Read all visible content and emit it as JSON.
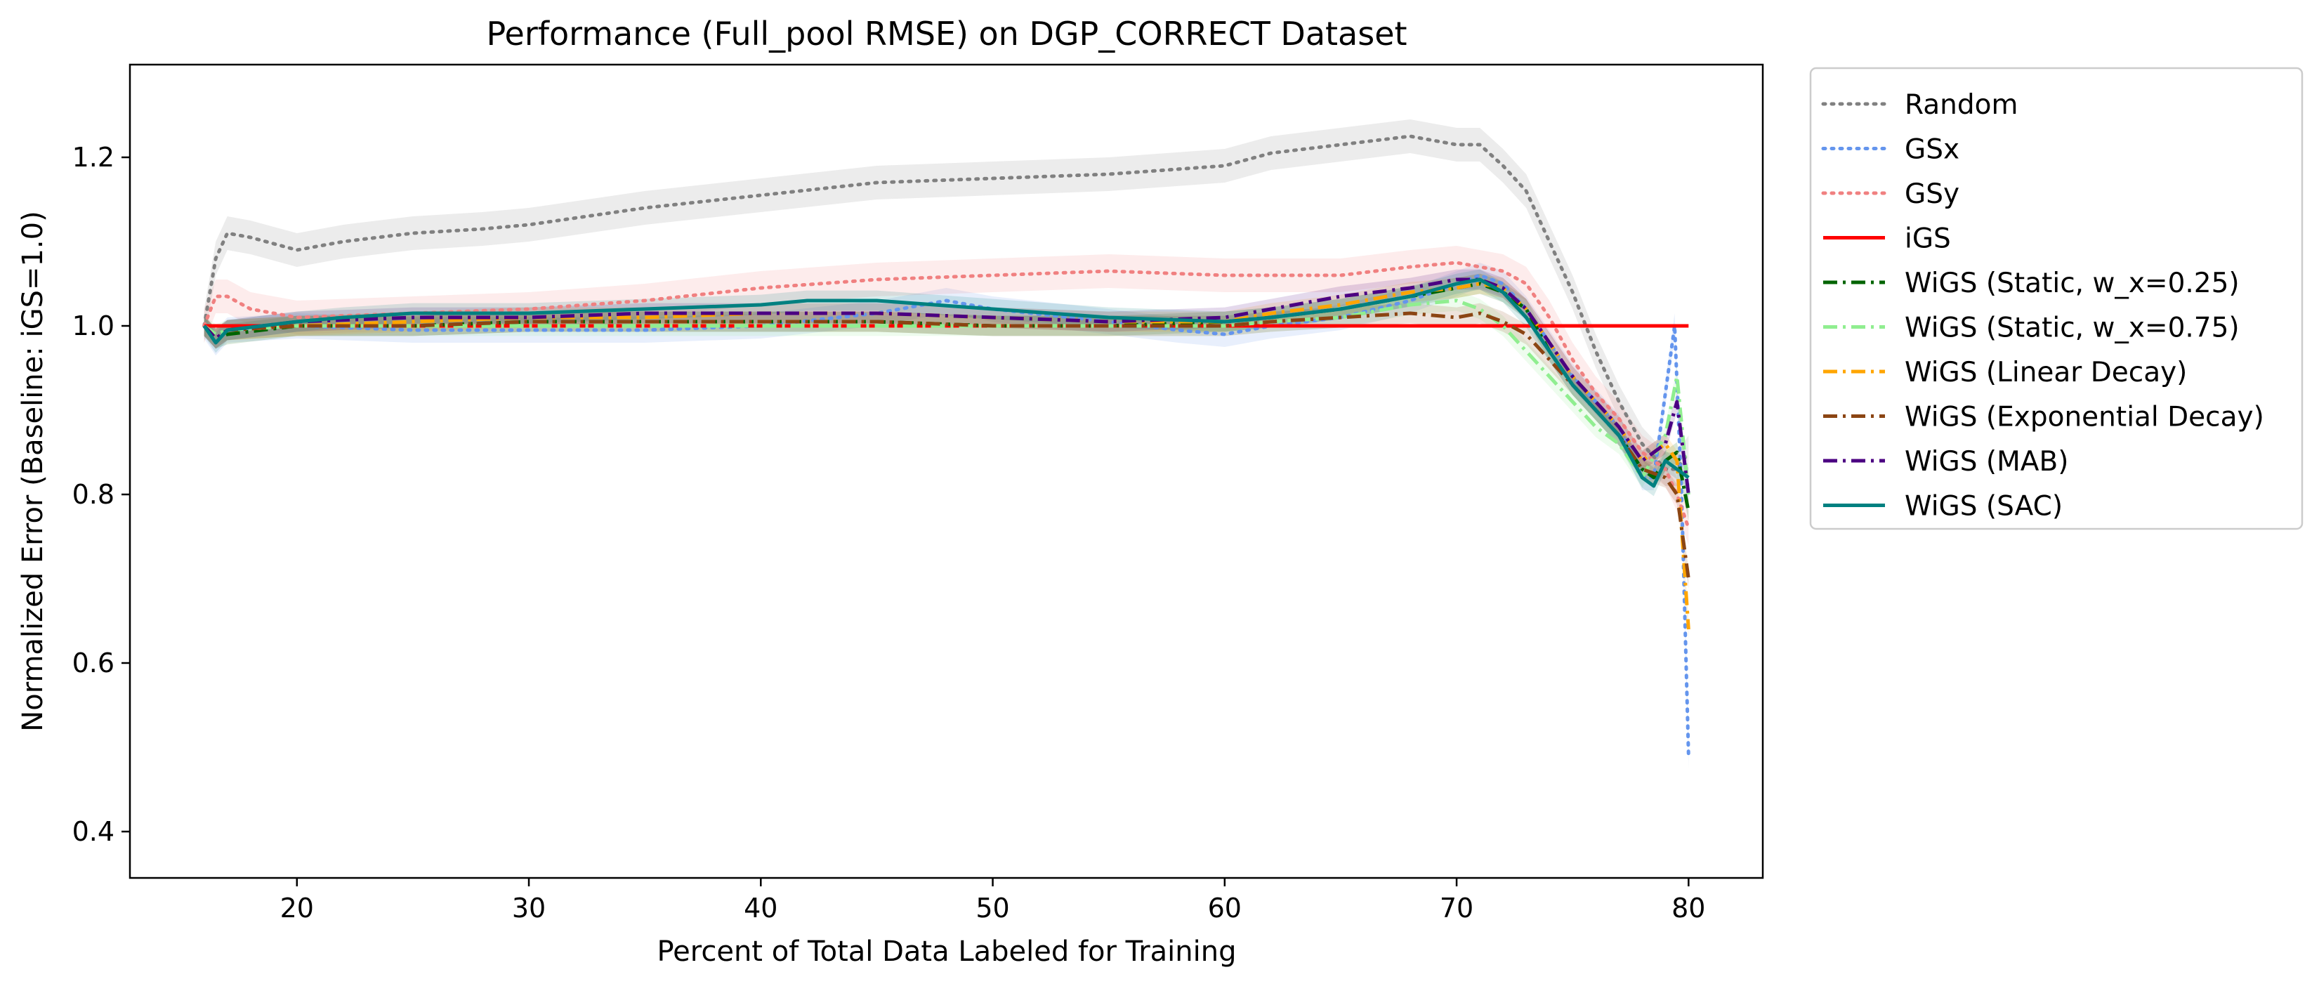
{
  "chart_data": {
    "type": "line",
    "title": "Performance (Full_pool RMSE) on DGP_CORRECT Dataset",
    "xlabel": "Percent of Total Data Labeled for Training",
    "ylabel": "Normalized Error (Baseline: iGS=1.0)",
    "xlim": [
      12.8,
      83.2
    ],
    "ylim": [
      0.345,
      1.31
    ],
    "xticks": [
      20,
      30,
      40,
      50,
      60,
      70,
      80
    ],
    "yticks": [
      0.4,
      0.6,
      0.8,
      1.0,
      1.2
    ],
    "ytick_labels": [
      "0.4",
      "0.6",
      "0.8",
      "1.0",
      "1.2"
    ],
    "grid": false,
    "legend_position": "outside-right-top",
    "series": [
      {
        "name": "Random",
        "color": "#808080",
        "style": "dotted",
        "band": 0.02,
        "points": [
          [
            16,
            1.0
          ],
          [
            16.5,
            1.08
          ],
          [
            17,
            1.11
          ],
          [
            18,
            1.105
          ],
          [
            20,
            1.09
          ],
          [
            22,
            1.1
          ],
          [
            25,
            1.11
          ],
          [
            28,
            1.115
          ],
          [
            30,
            1.12
          ],
          [
            35,
            1.14
          ],
          [
            40,
            1.155
          ],
          [
            45,
            1.17
          ],
          [
            50,
            1.175
          ],
          [
            55,
            1.18
          ],
          [
            60,
            1.19
          ],
          [
            62,
            1.205
          ],
          [
            65,
            1.215
          ],
          [
            68,
            1.225
          ],
          [
            70,
            1.215
          ],
          [
            71,
            1.215
          ],
          [
            72,
            1.19
          ],
          [
            73,
            1.16
          ],
          [
            74,
            1.1
          ],
          [
            75,
            1.04
          ],
          [
            76,
            0.97
          ],
          [
            77,
            0.91
          ],
          [
            78,
            0.86
          ],
          [
            79,
            0.83
          ],
          [
            79.5,
            0.83
          ],
          [
            80,
            0.85
          ]
        ]
      },
      {
        "name": "GSx",
        "color": "#6495ed",
        "style": "dotted",
        "band": 0.015,
        "points": [
          [
            16,
            1.0
          ],
          [
            16.5,
            0.98
          ],
          [
            17,
            0.995
          ],
          [
            20,
            1.0
          ],
          [
            25,
            0.995
          ],
          [
            30,
            0.995
          ],
          [
            35,
            0.995
          ],
          [
            40,
            1.0
          ],
          [
            45,
            1.015
          ],
          [
            48,
            1.03
          ],
          [
            50,
            1.02
          ],
          [
            55,
            1.005
          ],
          [
            58,
            0.995
          ],
          [
            60,
            0.99
          ],
          [
            62,
            1.0
          ],
          [
            65,
            1.01
          ],
          [
            68,
            1.03
          ],
          [
            70,
            1.05
          ],
          [
            71,
            1.06
          ],
          [
            72,
            1.05
          ],
          [
            73,
            1.02
          ],
          [
            74,
            0.98
          ],
          [
            75,
            0.94
          ],
          [
            76,
            0.91
          ],
          [
            77,
            0.88
          ],
          [
            78,
            0.82
          ],
          [
            78.5,
            0.82
          ],
          [
            79,
            0.92
          ],
          [
            79.4,
            1.0
          ],
          [
            79.7,
            0.8
          ],
          [
            80,
            0.49
          ]
        ]
      },
      {
        "name": "GSy",
        "color": "#f08080",
        "style": "dotted",
        "band": 0.02,
        "points": [
          [
            16,
            1.0
          ],
          [
            16.5,
            1.035
          ],
          [
            17,
            1.035
          ],
          [
            18,
            1.02
          ],
          [
            20,
            1.01
          ],
          [
            25,
            1.015
          ],
          [
            30,
            1.02
          ],
          [
            35,
            1.03
          ],
          [
            40,
            1.045
          ],
          [
            45,
            1.055
          ],
          [
            50,
            1.06
          ],
          [
            55,
            1.065
          ],
          [
            60,
            1.06
          ],
          [
            65,
            1.06
          ],
          [
            68,
            1.07
          ],
          [
            70,
            1.075
          ],
          [
            72,
            1.065
          ],
          [
            73,
            1.05
          ],
          [
            74,
            1.01
          ],
          [
            75,
            0.96
          ],
          [
            76,
            0.92
          ],
          [
            77,
            0.89
          ],
          [
            78,
            0.85
          ],
          [
            79,
            0.83
          ],
          [
            79.5,
            0.8
          ],
          [
            80,
            0.76
          ]
        ]
      },
      {
        "name": "iGS",
        "color": "#ff0000",
        "style": "solid",
        "band": 0.0,
        "points": [
          [
            16,
            1.0
          ],
          [
            80,
            1.0
          ]
        ]
      },
      {
        "name": "WiGS (Static, w_x=0.25)",
        "color": "#006400",
        "style": "dashdot",
        "band": 0.012,
        "points": [
          [
            16,
            1.0
          ],
          [
            16.5,
            0.985
          ],
          [
            17,
            0.99
          ],
          [
            20,
            1.0
          ],
          [
            25,
            1.0
          ],
          [
            30,
            1.005
          ],
          [
            35,
            1.005
          ],
          [
            40,
            1.005
          ],
          [
            45,
            1.005
          ],
          [
            50,
            1.0
          ],
          [
            55,
            1.0
          ],
          [
            60,
            1.005
          ],
          [
            62,
            1.01
          ],
          [
            65,
            1.02
          ],
          [
            68,
            1.035
          ],
          [
            70,
            1.045
          ],
          [
            71,
            1.05
          ],
          [
            72,
            1.04
          ],
          [
            73,
            1.02
          ],
          [
            74,
            0.97
          ],
          [
            75,
            0.93
          ],
          [
            76,
            0.9
          ],
          [
            77,
            0.87
          ],
          [
            78,
            0.83
          ],
          [
            78.5,
            0.82
          ],
          [
            79,
            0.84
          ],
          [
            79.5,
            0.85
          ],
          [
            80,
            0.78
          ]
        ]
      },
      {
        "name": "WiGS (Static, w_x=0.75)",
        "color": "#90ee90",
        "style": "dashdot",
        "band": 0.012,
        "points": [
          [
            16,
            1.0
          ],
          [
            16.5,
            0.99
          ],
          [
            17,
            0.995
          ],
          [
            20,
            1.0
          ],
          [
            25,
            1.0
          ],
          [
            30,
            1.0
          ],
          [
            35,
            1.0
          ],
          [
            40,
            1.0
          ],
          [
            45,
            1.0
          ],
          [
            50,
            1.0
          ],
          [
            55,
            1.0
          ],
          [
            60,
            1.0
          ],
          [
            62,
            1.005
          ],
          [
            65,
            1.01
          ],
          [
            68,
            1.025
          ],
          [
            70,
            1.03
          ],
          [
            71,
            1.02
          ],
          [
            72,
            1.0
          ],
          [
            73,
            0.97
          ],
          [
            74,
            0.94
          ],
          [
            75,
            0.91
          ],
          [
            76,
            0.88
          ],
          [
            77,
            0.86
          ],
          [
            78,
            0.82
          ],
          [
            79,
            0.87
          ],
          [
            79.5,
            0.94
          ],
          [
            80,
            0.8
          ]
        ]
      },
      {
        "name": "WiGS (Linear Decay)",
        "color": "#ffa500",
        "style": "dashdot",
        "band": 0.012,
        "points": [
          [
            16,
            1.0
          ],
          [
            16.5,
            0.985
          ],
          [
            17,
            0.995
          ],
          [
            20,
            1.0
          ],
          [
            25,
            1.005
          ],
          [
            30,
            1.01
          ],
          [
            35,
            1.01
          ],
          [
            40,
            1.015
          ],
          [
            45,
            1.015
          ],
          [
            50,
            1.01
          ],
          [
            55,
            1.005
          ],
          [
            60,
            1.005
          ],
          [
            62,
            1.015
          ],
          [
            65,
            1.025
          ],
          [
            68,
            1.04
          ],
          [
            70,
            1.045
          ],
          [
            71,
            1.05
          ],
          [
            72,
            1.045
          ],
          [
            73,
            1.02
          ],
          [
            74,
            0.98
          ],
          [
            75,
            0.94
          ],
          [
            76,
            0.91
          ],
          [
            77,
            0.88
          ],
          [
            78,
            0.84
          ],
          [
            79,
            0.86
          ],
          [
            79.5,
            0.84
          ],
          [
            80,
            0.64
          ]
        ]
      },
      {
        "name": "WiGS (Exponential Decay)",
        "color": "#8b4513",
        "style": "dashdot",
        "band": 0.012,
        "points": [
          [
            16,
            1.0
          ],
          [
            16.5,
            0.985
          ],
          [
            17,
            0.995
          ],
          [
            20,
            1.0
          ],
          [
            25,
            1.0
          ],
          [
            30,
            1.005
          ],
          [
            35,
            1.005
          ],
          [
            40,
            1.005
          ],
          [
            45,
            1.005
          ],
          [
            50,
            1.0
          ],
          [
            55,
            1.0
          ],
          [
            60,
            1.0
          ],
          [
            62,
            1.005
          ],
          [
            65,
            1.01
          ],
          [
            68,
            1.015
          ],
          [
            70,
            1.01
          ],
          [
            71,
            1.015
          ],
          [
            72,
            1.005
          ],
          [
            73,
            0.99
          ],
          [
            74,
            0.96
          ],
          [
            75,
            0.93
          ],
          [
            76,
            0.9
          ],
          [
            77,
            0.87
          ],
          [
            78,
            0.83
          ],
          [
            79,
            0.82
          ],
          [
            79.5,
            0.8
          ],
          [
            80,
            0.7
          ]
        ]
      },
      {
        "name": "WiGS (MAB)",
        "color": "#4b0082",
        "style": "dashdot",
        "band": 0.012,
        "points": [
          [
            16,
            1.0
          ],
          [
            16.5,
            0.985
          ],
          [
            17,
            0.995
          ],
          [
            20,
            1.005
          ],
          [
            25,
            1.01
          ],
          [
            30,
            1.01
          ],
          [
            35,
            1.015
          ],
          [
            40,
            1.015
          ],
          [
            45,
            1.015
          ],
          [
            50,
            1.01
          ],
          [
            55,
            1.005
          ],
          [
            60,
            1.01
          ],
          [
            62,
            1.02
          ],
          [
            65,
            1.035
          ],
          [
            68,
            1.045
          ],
          [
            70,
            1.055
          ],
          [
            71,
            1.055
          ],
          [
            72,
            1.045
          ],
          [
            73,
            1.02
          ],
          [
            74,
            0.98
          ],
          [
            75,
            0.94
          ],
          [
            76,
            0.91
          ],
          [
            77,
            0.88
          ],
          [
            78,
            0.84
          ],
          [
            79,
            0.86
          ],
          [
            79.5,
            0.91
          ],
          [
            80,
            0.8
          ]
        ]
      },
      {
        "name": "WiGS (SAC)",
        "color": "#008080",
        "style": "solid",
        "band": 0.012,
        "points": [
          [
            16,
            1.0
          ],
          [
            16.5,
            0.98
          ],
          [
            17,
            0.995
          ],
          [
            20,
            1.005
          ],
          [
            22,
            1.01
          ],
          [
            25,
            1.015
          ],
          [
            28,
            1.015
          ],
          [
            30,
            1.015
          ],
          [
            35,
            1.02
          ],
          [
            40,
            1.025
          ],
          [
            42,
            1.03
          ],
          [
            45,
            1.03
          ],
          [
            50,
            1.02
          ],
          [
            55,
            1.01
          ],
          [
            60,
            1.005
          ],
          [
            62,
            1.01
          ],
          [
            65,
            1.02
          ],
          [
            68,
            1.035
          ],
          [
            70,
            1.05
          ],
          [
            71,
            1.055
          ],
          [
            72,
            1.04
          ],
          [
            73,
            1.01
          ],
          [
            74,
            0.97
          ],
          [
            75,
            0.93
          ],
          [
            76,
            0.9
          ],
          [
            77,
            0.87
          ],
          [
            78,
            0.82
          ],
          [
            78.5,
            0.81
          ],
          [
            79,
            0.84
          ],
          [
            79.5,
            0.83
          ],
          [
            80,
            0.82
          ]
        ]
      }
    ]
  }
}
